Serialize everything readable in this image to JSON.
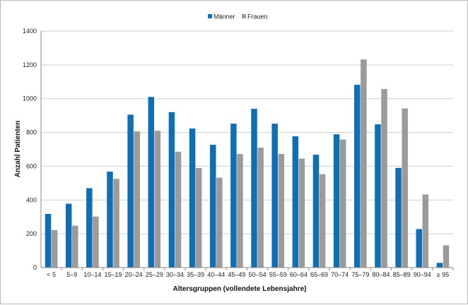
{
  "chart_data": {
    "type": "bar",
    "title": "",
    "xlabel": "Altersgruppen (vollendete Lebensjahre)",
    "ylabel": "Anzahl Patienten",
    "ylim": [
      0,
      1400
    ],
    "yticks": [
      0,
      200,
      400,
      600,
      800,
      1000,
      1200,
      1400
    ],
    "grid": true,
    "legend_position": "top-center",
    "categories": [
      "< 5",
      "5–9",
      "10–14",
      "15–19",
      "20–24",
      "25–29",
      "30–34",
      "35–39",
      "40–44",
      "45–49",
      "50–54",
      "55–59",
      "60–64",
      "65–69",
      "70–74",
      "75–79",
      "80–84",
      "85–89",
      "90–94",
      "≥ 95"
    ],
    "series": [
      {
        "name": "Männer",
        "color": "#0f6fb4",
        "values": [
          318,
          378,
          470,
          568,
          905,
          1010,
          920,
          823,
          727,
          852,
          940,
          852,
          777,
          668,
          789,
          1082,
          848,
          590,
          228,
          28
        ]
      },
      {
        "name": "Frauen",
        "color": "#9b9b9b",
        "values": [
          222,
          248,
          302,
          525,
          806,
          810,
          686,
          589,
          532,
          672,
          710,
          673,
          645,
          553,
          758,
          1232,
          1057,
          942,
          433,
          132
        ]
      }
    ]
  }
}
